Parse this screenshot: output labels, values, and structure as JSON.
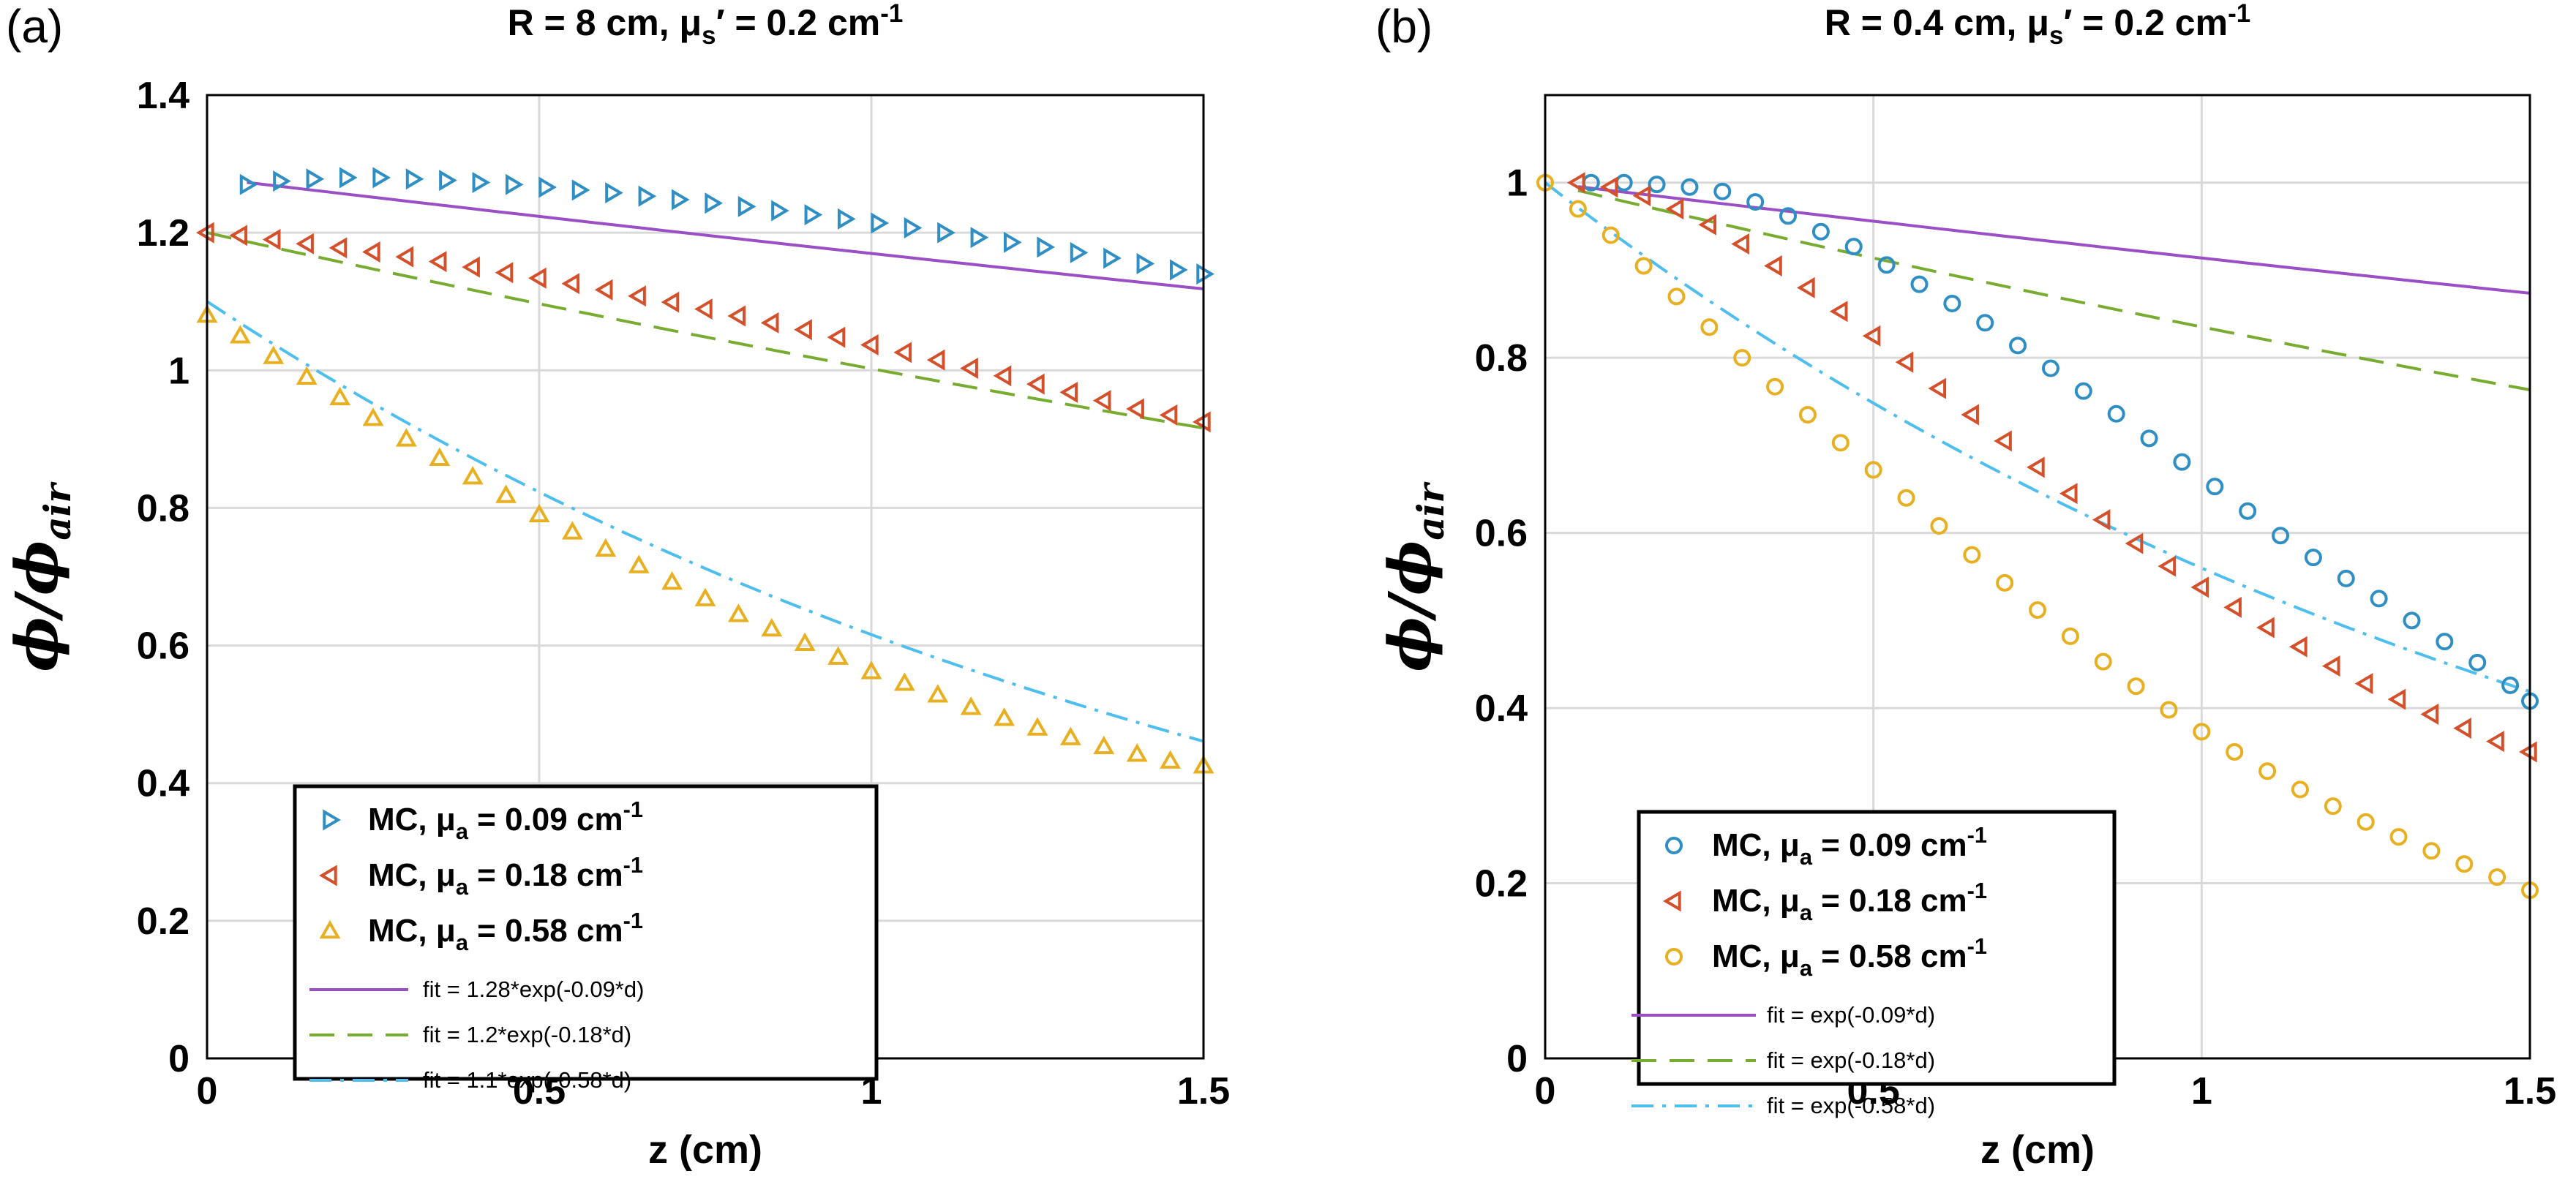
{
  "colors": {
    "blue": "#2f8fc4",
    "red": "#d4502a",
    "orange": "#e8b020",
    "purple": "#9b4fc6",
    "green": "#77ac30",
    "cyan": "#4dbeee"
  },
  "chart_data": [
    {
      "type": "scatter",
      "panel_label": "(a)",
      "title": "R = 8 cm, μs′ = 0.2 cm-1",
      "xlabel": "z (cm)",
      "ylabel": "ϕ/ϕair",
      "xlim": [
        0,
        1.5
      ],
      "ylim": [
        0,
        1.4
      ],
      "xticks": [
        0,
        0.5,
        1,
        1.5
      ],
      "xtick_labels": [
        "0",
        "0.5",
        "1",
        "1.5"
      ],
      "yticks": [
        0,
        0.2,
        0.4,
        0.6,
        0.8,
        1,
        1.2,
        1.4
      ],
      "ytick_labels": [
        "0",
        "0.2",
        "0.4",
        "0.6",
        "0.8",
        "1",
        "1.2",
        "1.4"
      ],
      "grid": true,
      "legend_position": "bottom-left",
      "series": [
        {
          "name": "MC, μa = 0.09 cm-1",
          "kind": "marker",
          "marker": "triangle-right",
          "color": "blue",
          "x": [
            0.06,
            0.11,
            0.16,
            0.21,
            0.26,
            0.31,
            0.36,
            0.41,
            0.46,
            0.51,
            0.56,
            0.61,
            0.66,
            0.71,
            0.76,
            0.81,
            0.86,
            0.91,
            0.96,
            1.01,
            1.06,
            1.11,
            1.16,
            1.21,
            1.26,
            1.31,
            1.36,
            1.41,
            1.46,
            1.5
          ],
          "y": [
            1.27,
            1.275,
            1.278,
            1.28,
            1.28,
            1.278,
            1.276,
            1.273,
            1.27,
            1.266,
            1.262,
            1.258,
            1.253,
            1.248,
            1.243,
            1.238,
            1.232,
            1.226,
            1.22,
            1.214,
            1.207,
            1.2,
            1.193,
            1.186,
            1.179,
            1.171,
            1.163,
            1.155,
            1.146,
            1.14
          ]
        },
        {
          "name": "MC, μa = 0.18 cm-1",
          "kind": "marker",
          "marker": "triangle-left",
          "color": "red",
          "x": [
            0,
            0.05,
            0.1,
            0.15,
            0.2,
            0.25,
            0.3,
            0.35,
            0.4,
            0.45,
            0.5,
            0.55,
            0.6,
            0.65,
            0.7,
            0.75,
            0.8,
            0.85,
            0.9,
            0.95,
            1.0,
            1.05,
            1.1,
            1.15,
            1.2,
            1.25,
            1.3,
            1.35,
            1.4,
            1.45,
            1.5
          ],
          "y": [
            1.2,
            1.196,
            1.19,
            1.184,
            1.178,
            1.172,
            1.165,
            1.158,
            1.15,
            1.142,
            1.134,
            1.126,
            1.117,
            1.108,
            1.099,
            1.089,
            1.079,
            1.069,
            1.059,
            1.048,
            1.037,
            1.026,
            1.015,
            1.003,
            0.992,
            0.98,
            0.968,
            0.956,
            0.944,
            0.935,
            0.925
          ]
        },
        {
          "name": "MC, μa = 0.58 cm-1",
          "kind": "marker",
          "marker": "triangle-up",
          "color": "orange",
          "x": [
            0,
            0.05,
            0.1,
            0.15,
            0.2,
            0.25,
            0.3,
            0.35,
            0.4,
            0.45,
            0.5,
            0.55,
            0.6,
            0.65,
            0.7,
            0.75,
            0.8,
            0.85,
            0.9,
            0.95,
            1.0,
            1.05,
            1.1,
            1.15,
            1.2,
            1.25,
            1.3,
            1.35,
            1.4,
            1.45,
            1.5
          ],
          "y": [
            1.08,
            1.05,
            1.02,
            0.99,
            0.96,
            0.93,
            0.9,
            0.872,
            0.845,
            0.818,
            0.79,
            0.765,
            0.74,
            0.716,
            0.692,
            0.668,
            0.645,
            0.624,
            0.603,
            0.583,
            0.562,
            0.545,
            0.528,
            0.51,
            0.494,
            0.48,
            0.466,
            0.453,
            0.442,
            0.432,
            0.425
          ]
        },
        {
          "name": "fit = 1.28*exp(-0.09*d)",
          "kind": "line",
          "dash": "solid",
          "color": "purple",
          "amp": 1.28,
          "rate": 0.09,
          "x_range": [
            0.06,
            1.5
          ]
        },
        {
          "name": "fit = 1.2*exp(-0.18*d)",
          "kind": "line",
          "dash": "dashed",
          "color": "green",
          "amp": 1.2,
          "rate": 0.18,
          "x_range": [
            0,
            1.5
          ]
        },
        {
          "name": "fit = 1.1*exp(-0.58*d)",
          "kind": "line",
          "dash": "dashdot",
          "color": "cyan",
          "amp": 1.1,
          "rate": 0.58,
          "x_range": [
            0,
            1.5
          ]
        }
      ]
    },
    {
      "type": "scatter",
      "panel_label": "(b)",
      "title": "R = 0.4 cm, μs′ = 0.2 cm-1",
      "xlabel": "z (cm)",
      "ylabel": "ϕ/ϕair",
      "xlim": [
        0,
        1.5
      ],
      "ylim": [
        0,
        1.1
      ],
      "xticks": [
        0,
        0.5,
        1,
        1.5
      ],
      "xtick_labels": [
        "0",
        "0.5",
        "1",
        "1.5"
      ],
      "yticks": [
        0,
        0.2,
        0.4,
        0.6,
        0.8,
        1
      ],
      "ytick_labels": [
        "0",
        "0.2",
        "0.4",
        "0.6",
        "0.8",
        "1"
      ],
      "grid": true,
      "legend_position": "bottom-left",
      "series": [
        {
          "name": "MC, μa = 0.09 cm-1",
          "kind": "marker",
          "marker": "circle",
          "color": "blue",
          "x": [
            0.07,
            0.12,
            0.17,
            0.22,
            0.27,
            0.32,
            0.37,
            0.42,
            0.47,
            0.52,
            0.57,
            0.62,
            0.67,
            0.72,
            0.77,
            0.82,
            0.87,
            0.92,
            0.97,
            1.02,
            1.07,
            1.12,
            1.17,
            1.22,
            1.27,
            1.32,
            1.37,
            1.42,
            1.47,
            1.5
          ],
          "y": [
            1.0,
            1.0,
            0.998,
            0.995,
            0.99,
            0.978,
            0.962,
            0.944,
            0.927,
            0.906,
            0.884,
            0.862,
            0.84,
            0.814,
            0.788,
            0.762,
            0.736,
            0.708,
            0.681,
            0.653,
            0.625,
            0.597,
            0.572,
            0.548,
            0.525,
            0.5,
            0.476,
            0.452,
            0.426,
            0.408
          ]
        },
        {
          "name": "MC, μa = 0.18 cm-1",
          "kind": "marker",
          "marker": "triangle-left",
          "color": "red",
          "x": [
            0.05,
            0.1,
            0.15,
            0.2,
            0.25,
            0.3,
            0.35,
            0.4,
            0.45,
            0.5,
            0.55,
            0.6,
            0.65,
            0.7,
            0.75,
            0.8,
            0.85,
            0.9,
            0.95,
            1.0,
            1.05,
            1.1,
            1.15,
            1.2,
            1.25,
            1.3,
            1.35,
            1.4,
            1.45,
            1.5
          ],
          "y": [
            1.0,
            0.995,
            0.985,
            0.97,
            0.952,
            0.93,
            0.905,
            0.88,
            0.853,
            0.825,
            0.795,
            0.765,
            0.735,
            0.705,
            0.675,
            0.645,
            0.615,
            0.588,
            0.562,
            0.538,
            0.515,
            0.492,
            0.47,
            0.448,
            0.428,
            0.41,
            0.393,
            0.377,
            0.362,
            0.35
          ]
        },
        {
          "name": "MC, μa = 0.58 cm-1",
          "kind": "marker",
          "marker": "circle",
          "color": "orange",
          "x": [
            0,
            0.05,
            0.1,
            0.15,
            0.2,
            0.25,
            0.3,
            0.35,
            0.4,
            0.45,
            0.5,
            0.55,
            0.6,
            0.65,
            0.7,
            0.75,
            0.8,
            0.85,
            0.9,
            0.95,
            1.0,
            1.05,
            1.1,
            1.15,
            1.2,
            1.25,
            1.3,
            1.35,
            1.4,
            1.45,
            1.5
          ],
          "y": [
            1.0,
            0.97,
            0.94,
            0.905,
            0.87,
            0.835,
            0.8,
            0.767,
            0.735,
            0.703,
            0.672,
            0.64,
            0.608,
            0.575,
            0.543,
            0.512,
            0.482,
            0.453,
            0.425,
            0.398,
            0.373,
            0.35,
            0.328,
            0.307,
            0.288,
            0.27,
            0.253,
            0.237,
            0.222,
            0.207,
            0.192
          ]
        },
        {
          "name": "fit = exp(-0.09*d)",
          "kind": "line",
          "dash": "solid",
          "color": "purple",
          "amp": 1.0,
          "rate": 0.09,
          "x_range": [
            0.05,
            1.5
          ]
        },
        {
          "name": "fit = exp(-0.18*d)",
          "kind": "line",
          "dash": "dashed",
          "color": "green",
          "amp": 1.0,
          "rate": 0.18,
          "x_range": [
            0.05,
            1.5
          ]
        },
        {
          "name": "fit = exp(-0.58*d)",
          "kind": "line",
          "dash": "dashdot",
          "color": "cyan",
          "amp": 1.0,
          "rate": 0.58,
          "x_range": [
            0,
            1.5
          ]
        }
      ]
    }
  ]
}
